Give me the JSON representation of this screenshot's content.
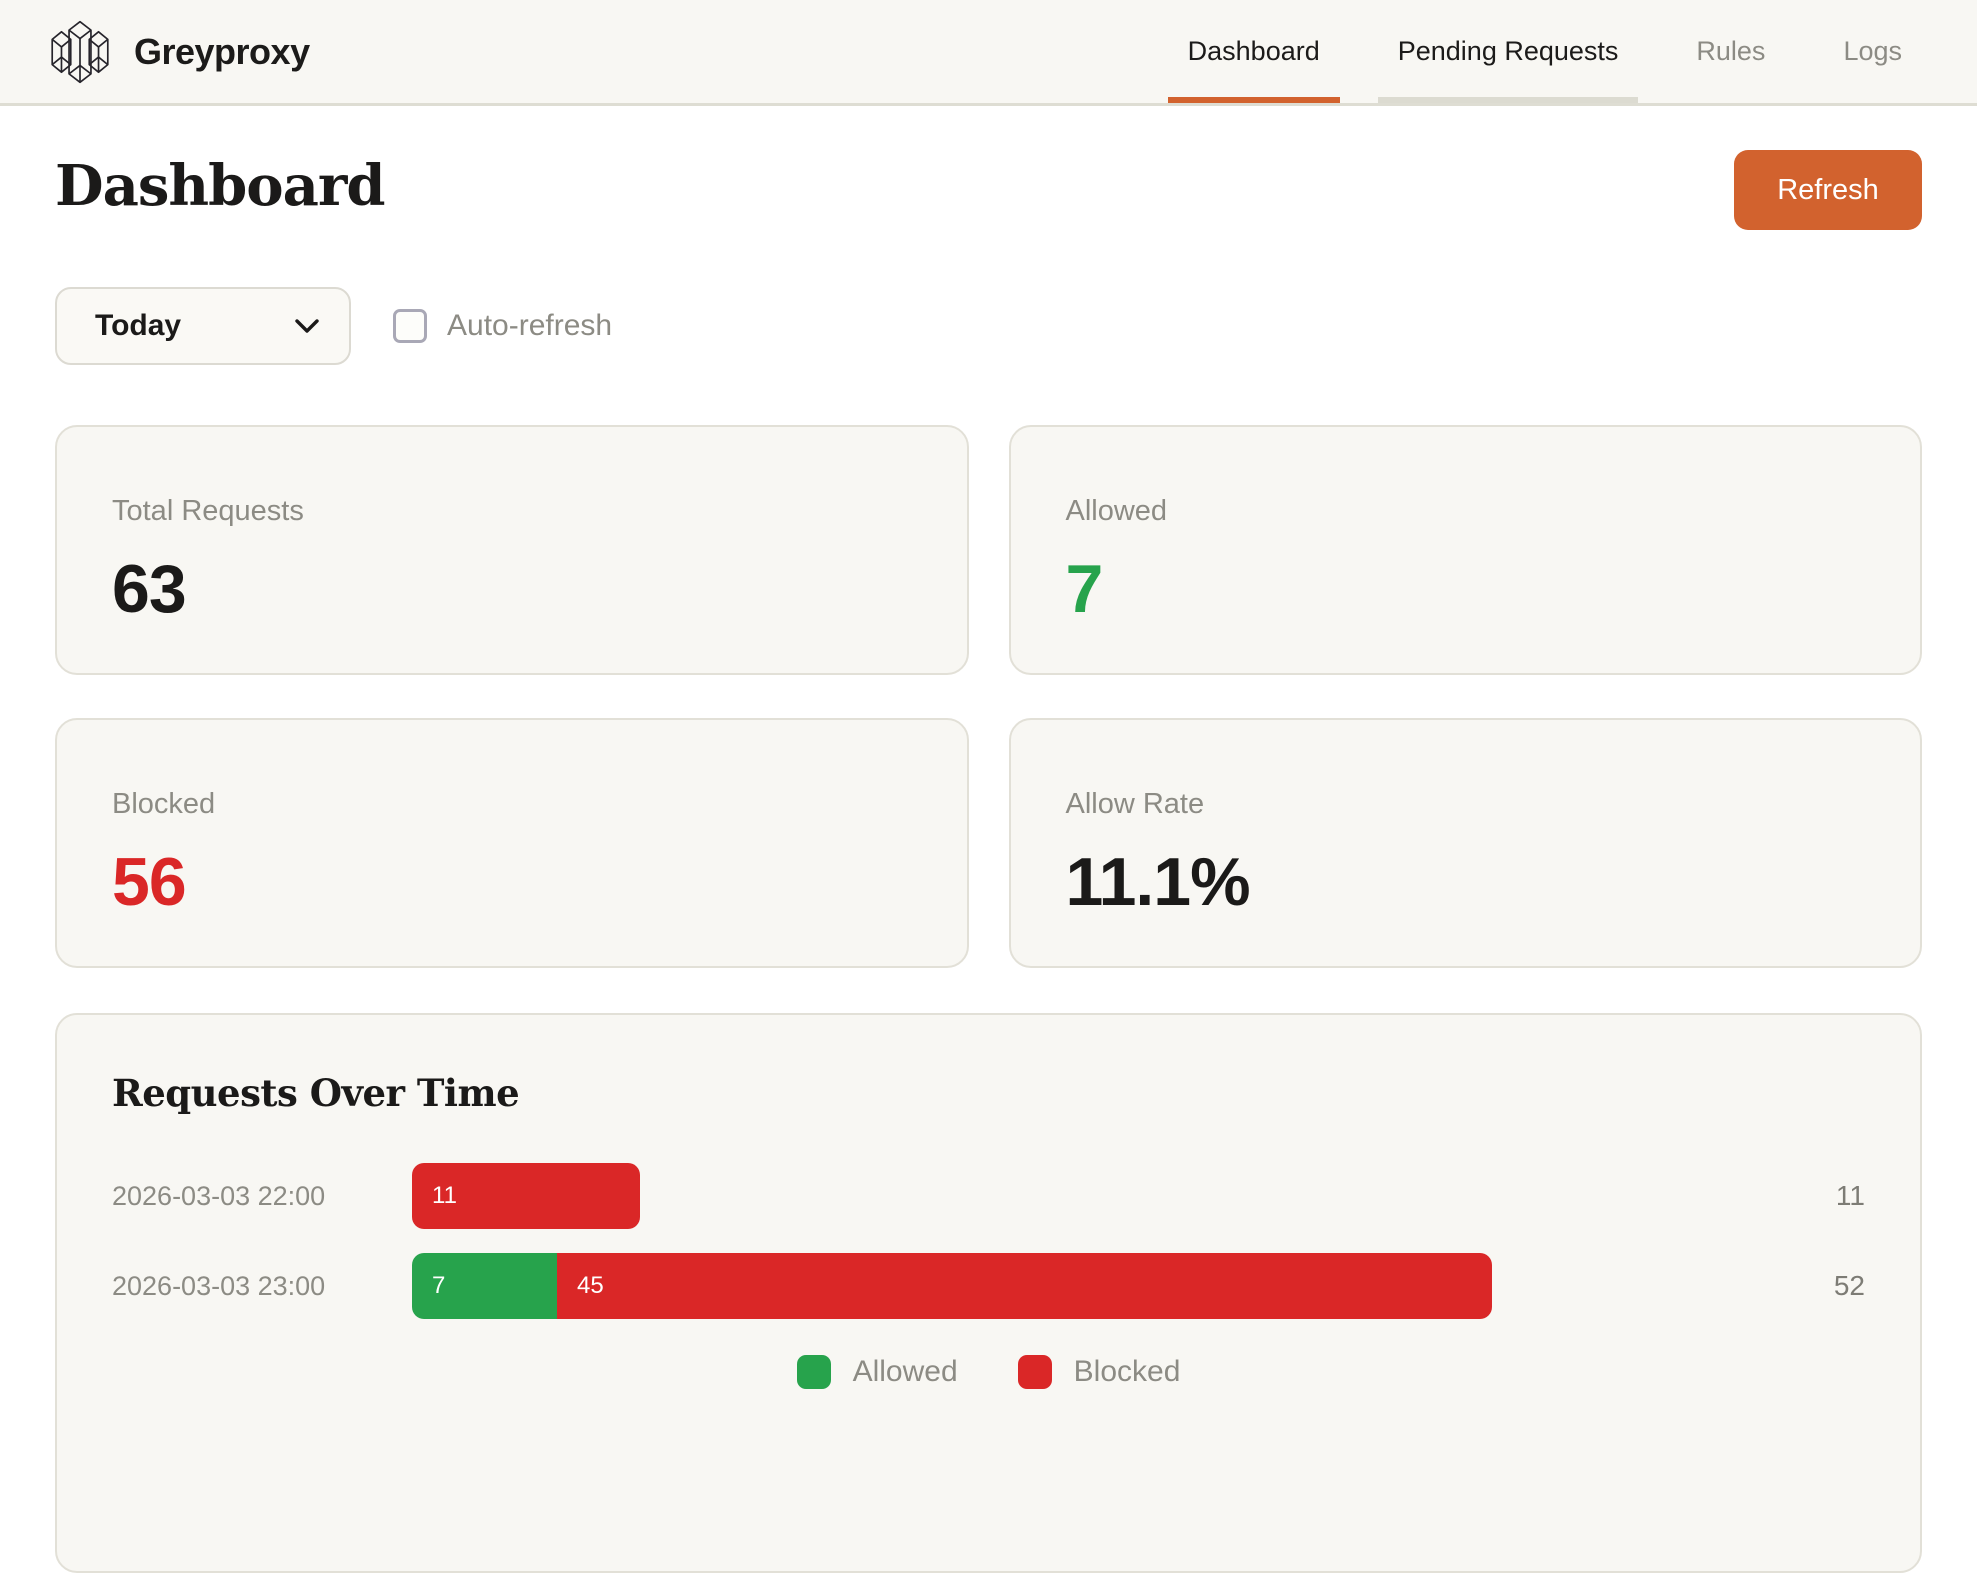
{
  "brand": {
    "name": "Greyproxy",
    "logo_icon": "crystal-columns-icon"
  },
  "nav": {
    "items": [
      {
        "label": "Dashboard",
        "active": true
      },
      {
        "label": "Pending Requests",
        "active": false
      },
      {
        "label": "Rules",
        "active": false
      },
      {
        "label": "Logs",
        "active": false
      }
    ]
  },
  "page": {
    "title": "Dashboard",
    "refresh_label": "Refresh"
  },
  "controls": {
    "range_selected": "Today",
    "auto_refresh_label": "Auto-refresh",
    "auto_refresh_checked": false
  },
  "stats": [
    {
      "label": "Total Requests",
      "value": "63",
      "color": "#1b1a19"
    },
    {
      "label": "Allowed",
      "value": "7",
      "color": "#27a34c"
    },
    {
      "label": "Blocked",
      "value": "56",
      "color": "#da2727"
    },
    {
      "label": "Allow Rate",
      "value": "11.1%",
      "color": "#1b1a19"
    }
  ],
  "chart_data": {
    "type": "bar",
    "orientation": "horizontal",
    "stacked": true,
    "title": "Requests Over Time",
    "categories": [
      "2026-03-03 22:00",
      "2026-03-03 23:00"
    ],
    "series": [
      {
        "name": "Allowed",
        "color": "#27a34c",
        "values": [
          0,
          7
        ]
      },
      {
        "name": "Blocked",
        "color": "#da2727",
        "values": [
          11,
          45
        ]
      }
    ],
    "row_totals": [
      11,
      52
    ],
    "xmax": 52,
    "grid": false,
    "legend_position": "bottom",
    "legend": [
      "Allowed",
      "Blocked"
    ]
  },
  "colors": {
    "accent_orange": "#d2622e",
    "allowed_green": "#27a34c",
    "blocked_red": "#da2727",
    "surface": "#f8f7f3",
    "border": "#e2e0d7"
  }
}
